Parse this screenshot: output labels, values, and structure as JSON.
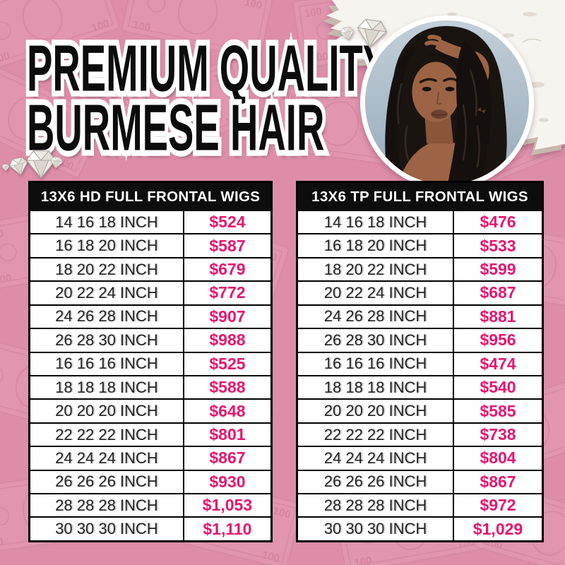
{
  "page": {
    "background_color": "#dd8da8",
    "accent_color": "#e8156e",
    "table_header_bg": "#0d0d0d"
  },
  "header": {
    "title_line1": "PREMIUM QUALITY",
    "title_line2": "BURMESE HAIR"
  },
  "decor": {
    "icons": [
      "diamond-icon",
      "diamond-cluster-left",
      "diamond-cluster-photo"
    ],
    "money_pattern": "pink-dollar-bills-pattern",
    "torn_paper": "white-torn-paper-corner",
    "model_photo": "woman-with-long-black-wavy-hair"
  },
  "tables": [
    {
      "title": "13X6 HD FULL FRONTAL WIGS",
      "rows": [
        {
          "size": "14 16 18 INCH",
          "price": "$524"
        },
        {
          "size": "16 18 20 INCH",
          "price": "$587"
        },
        {
          "size": "18 20 22 INCH",
          "price": "$679"
        },
        {
          "size": "20 22 24 INCH",
          "price": "$772"
        },
        {
          "size": "24 26 28 INCH",
          "price": "$907"
        },
        {
          "size": "26 28 30 INCH",
          "price": "$988"
        },
        {
          "size": "16 16 16 INCH",
          "price": "$525"
        },
        {
          "size": "18 18 18 INCH",
          "price": "$588"
        },
        {
          "size": "20 20 20 INCH",
          "price": "$648"
        },
        {
          "size": "22 22 22 INCH",
          "price": "$801"
        },
        {
          "size": "24 24 24 INCH",
          "price": "$867"
        },
        {
          "size": "26 26 26 INCH",
          "price": "$930"
        },
        {
          "size": "28 28 28 INCH",
          "price": "$1,053"
        },
        {
          "size": "30 30 30 INCH",
          "price": "$1,110"
        }
      ]
    },
    {
      "title": "13X6 TP FULL FRONTAL WIGS",
      "rows": [
        {
          "size": "14 16 18 INCH",
          "price": "$476"
        },
        {
          "size": "16 18 20 INCH",
          "price": "$533"
        },
        {
          "size": "18 20 22 INCH",
          "price": "$599"
        },
        {
          "size": "20 22 24 INCH",
          "price": "$687"
        },
        {
          "size": "24 26 28 INCH",
          "price": "$881"
        },
        {
          "size": "26 28 30 INCH",
          "price": "$956"
        },
        {
          "size": "16 16 16 INCH",
          "price": "$474"
        },
        {
          "size": "18 18 18 INCH",
          "price": "$540"
        },
        {
          "size": "20 20 20 INCH",
          "price": "$585"
        },
        {
          "size": "22 22 22 INCH",
          "price": "$738"
        },
        {
          "size": "24 24 24 INCH",
          "price": "$804"
        },
        {
          "size": "26 26 26 INCH",
          "price": "$867"
        },
        {
          "size": "28 28 28 INCH",
          "price": "$972"
        },
        {
          "size": "30 30 30 INCH",
          "price": "$1,029"
        }
      ]
    }
  ]
}
